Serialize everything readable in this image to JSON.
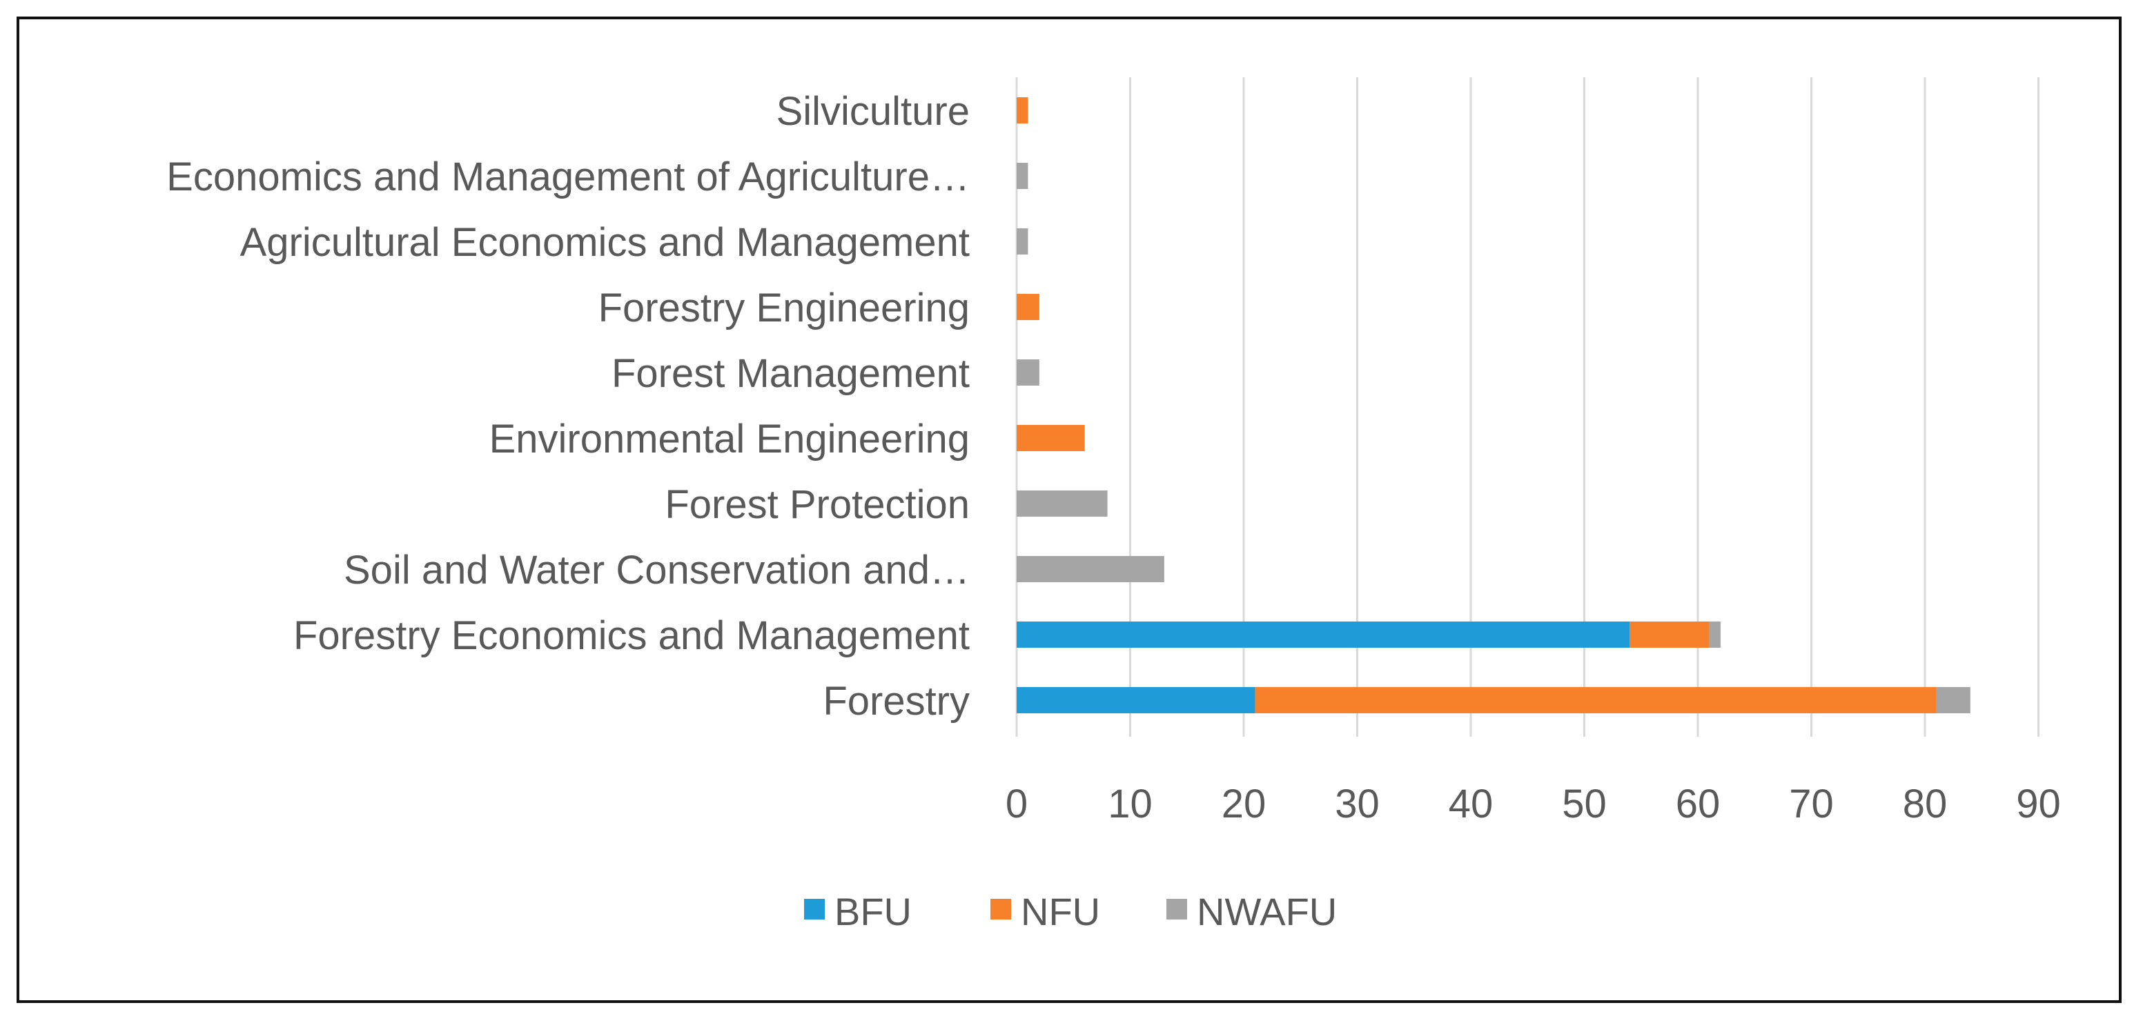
{
  "chart_data": {
    "type": "bar",
    "orientation": "horizontal",
    "stacked": true,
    "title": "",
    "xlabel": "",
    "ylabel": "",
    "xlim": [
      0,
      90
    ],
    "x_ticks": [
      0,
      10,
      20,
      30,
      40,
      50,
      60,
      70,
      80,
      90
    ],
    "grid": "vertical",
    "legend_position": "bottom",
    "categories": [
      "Forestry",
      "Forestry Economics and Management",
      "Soil and Water Conservation and…",
      "Forest Protection",
      "Environmental Engineering",
      "Forest Management",
      "Forestry Engineering",
      "Agricultural Economics and Management",
      "Economics and Management of Agriculture…",
      "Silviculture"
    ],
    "series": [
      {
        "name": "BFU",
        "color": "#1f9bd7",
        "values": [
          21,
          54,
          0,
          0,
          0,
          0,
          0,
          0,
          0,
          0
        ]
      },
      {
        "name": "NFU",
        "color": "#f7802b",
        "values": [
          60,
          7,
          0,
          0,
          6,
          0,
          2,
          0,
          0,
          1
        ]
      },
      {
        "name": "NWAFU",
        "color": "#a5a5a5",
        "values": [
          3,
          1,
          13,
          8,
          0,
          2,
          0,
          1,
          1,
          0
        ]
      }
    ]
  },
  "colors": {
    "gridline": "#d9d9d9",
    "axis_text": "#595959",
    "frame": "#111111"
  }
}
